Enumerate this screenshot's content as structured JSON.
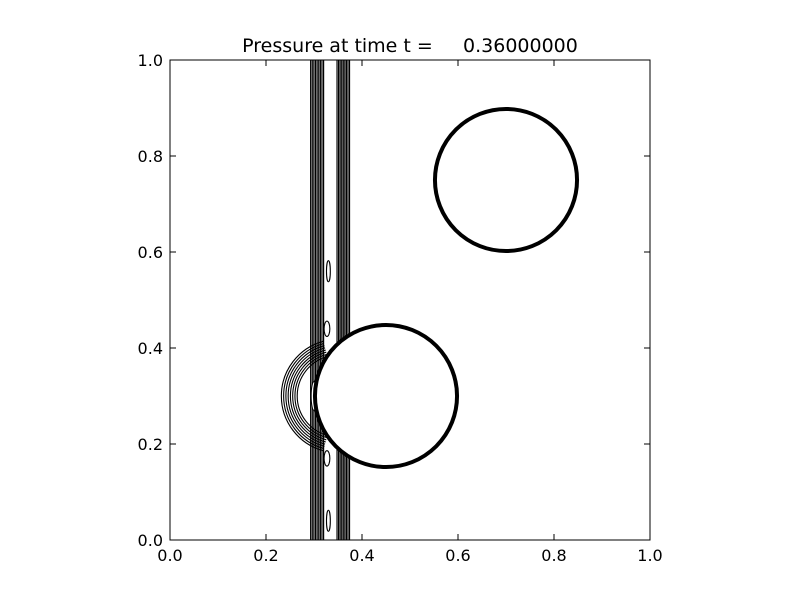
{
  "chart_data": {
    "type": "contour",
    "title": "Pressure at time t =     0.36000000",
    "xlabel": "",
    "ylabel": "",
    "xlim": [
      0.0,
      1.0
    ],
    "ylim": [
      0.0,
      1.0
    ],
    "x_ticks": [
      "0.0",
      "0.2",
      "0.4",
      "0.6",
      "0.8",
      "1.0"
    ],
    "y_ticks": [
      "0.0",
      "0.2",
      "0.4",
      "0.6",
      "0.8",
      "1.0"
    ],
    "grid": false,
    "line_color": "#000000",
    "circles": [
      {
        "name": "",
        "cx": 0.7,
        "cy": 0.75,
        "r": 0.148
      },
      {
        "name": "",
        "cx": 0.45,
        "cy": 0.3,
        "r": 0.148
      }
    ],
    "contour_bands": [
      {
        "x_min": 0.293,
        "x_max": 0.32,
        "y_min": 0.0,
        "y_max": 1.0,
        "lines": 9
      },
      {
        "x_min": 0.348,
        "x_max": 0.374,
        "y_min": 0.0,
        "y_max": 1.0,
        "lines": 9
      }
    ],
    "reflected_wave": {
      "center_x": 0.35,
      "center_y": 0.3,
      "radius_min": 0.085,
      "radius_max": 0.118,
      "lines": 8
    }
  }
}
